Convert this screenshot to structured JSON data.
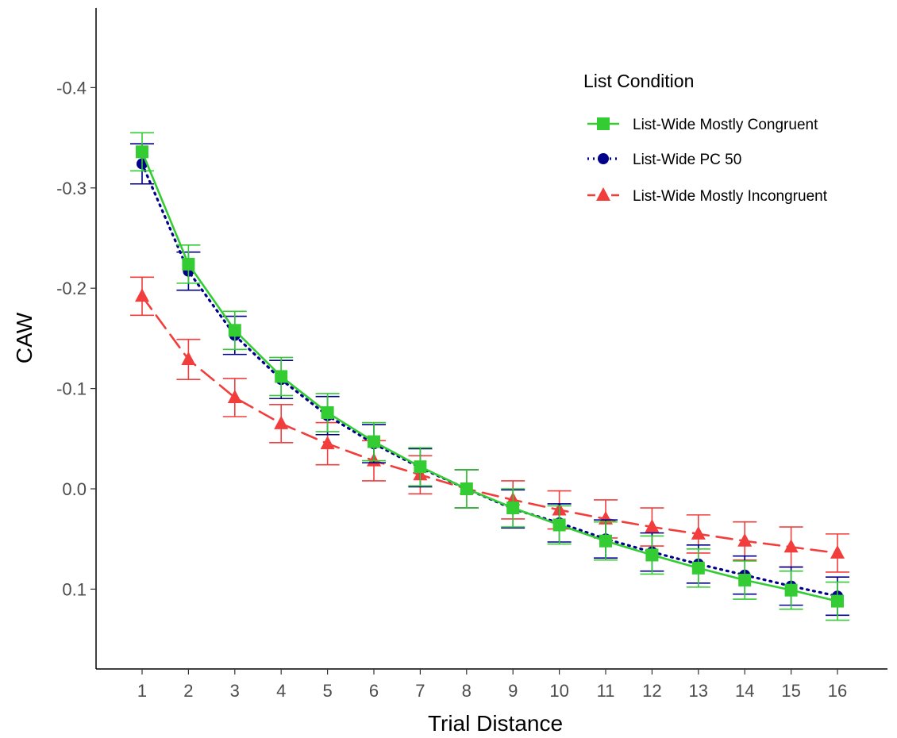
{
  "chart_data": {
    "type": "line",
    "xlabel": "Trial Distance",
    "ylabel": "CAW",
    "x": [
      1,
      2,
      3,
      4,
      5,
      6,
      7,
      8,
      9,
      10,
      11,
      12,
      13,
      14,
      15,
      16
    ],
    "x_ticks": [
      "1",
      "2",
      "3",
      "4",
      "5",
      "6",
      "7",
      "8",
      "9",
      "10",
      "11",
      "12",
      "13",
      "14",
      "15",
      "16"
    ],
    "y_reversed": true,
    "ylim": [
      -0.48,
      0.18
    ],
    "y_ticks": [
      {
        "value": -0.4,
        "label": "-0.4"
      },
      {
        "value": -0.3,
        "label": "-0.3"
      },
      {
        "value": -0.2,
        "label": "-0.2"
      },
      {
        "value": -0.1,
        "label": "-0.1"
      },
      {
        "value": 0.0,
        "label": "0.0"
      },
      {
        "value": 0.1,
        "label": "0.1"
      }
    ],
    "grid": false,
    "legend": {
      "title": "List Condition",
      "position": "top-right"
    },
    "series": [
      {
        "name": "List-Wide Mostly Congruent",
        "color": "#33cc33",
        "marker": "square",
        "line_style": "solid",
        "values": [
          -0.336,
          -0.224,
          -0.158,
          -0.112,
          -0.076,
          -0.047,
          -0.022,
          0.0,
          0.019,
          0.036,
          0.052,
          0.066,
          0.079,
          0.091,
          0.101,
          0.112
        ],
        "error": [
          0.019,
          0.019,
          0.019,
          0.019,
          0.019,
          0.019,
          0.019,
          0.019,
          0.019,
          0.019,
          0.019,
          0.019,
          0.019,
          0.019,
          0.019,
          0.019
        ]
      },
      {
        "name": "List-Wide PC 50",
        "color": "#00008b",
        "marker": "circle",
        "line_style": "dotted",
        "values": [
          -0.324,
          -0.217,
          -0.153,
          -0.109,
          -0.073,
          -0.045,
          -0.021,
          0.0,
          0.02,
          0.034,
          0.05,
          0.063,
          0.075,
          0.086,
          0.097,
          0.107
        ],
        "error": [
          0.02,
          0.019,
          0.019,
          0.019,
          0.019,
          0.019,
          0.019,
          0.019,
          0.019,
          0.019,
          0.019,
          0.019,
          0.019,
          0.019,
          0.019,
          0.019
        ]
      },
      {
        "name": "List-Wide Mostly Incongruent",
        "color": "#f23d3d",
        "marker": "triangle",
        "line_style": "dashed",
        "values": [
          -0.192,
          -0.129,
          -0.091,
          -0.065,
          -0.045,
          -0.028,
          -0.014,
          0.0,
          0.011,
          0.021,
          0.03,
          0.038,
          0.045,
          0.052,
          0.058,
          0.064
        ],
        "error": [
          0.019,
          0.02,
          0.019,
          0.019,
          0.021,
          0.02,
          0.019,
          0.019,
          0.019,
          0.019,
          0.019,
          0.019,
          0.019,
          0.019,
          0.02,
          0.019
        ]
      }
    ]
  }
}
